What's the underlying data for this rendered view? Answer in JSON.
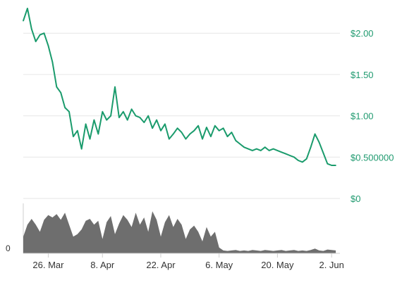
{
  "chart_data": {
    "type": "line",
    "title": "",
    "xlabel": "",
    "ylabel": "",
    "price_axis": {
      "ylim": [
        0,
        2.3
      ],
      "ticks": [
        {
          "value": 2.0,
          "label": "$2.00"
        },
        {
          "value": 1.5,
          "label": "$1.50"
        },
        {
          "value": 1.0,
          "label": "$1.00"
        },
        {
          "value": 0.5,
          "label": "$0.500000"
        },
        {
          "value": 0.0,
          "label": "$0"
        }
      ],
      "grid": true
    },
    "date_axis": {
      "xlim": [
        "2018-03-20",
        "2018-06-04"
      ],
      "ticks": [
        {
          "date": "2018-03-26",
          "label": "26. Mar"
        },
        {
          "date": "2018-04-08",
          "label": "8. Apr"
        },
        {
          "date": "2018-04-22",
          "label": "22. Apr"
        },
        {
          "date": "2018-05-06",
          "label": "6. May"
        },
        {
          "date": "2018-05-20",
          "label": "20. May"
        },
        {
          "date": "2018-06-02",
          "label": "2. Jun"
        }
      ]
    },
    "volume_axis": {
      "ticks": [
        {
          "value": 0,
          "label": "0"
        }
      ]
    },
    "series": [
      {
        "type": "line",
        "color": "#1a9b6c",
        "x": [
          "2018-03-20",
          "2018-03-21",
          "2018-03-22",
          "2018-03-23",
          "2018-03-24",
          "2018-03-25",
          "2018-03-26",
          "2018-03-27",
          "2018-03-28",
          "2018-03-29",
          "2018-03-30",
          "2018-03-31",
          "2018-04-01",
          "2018-04-02",
          "2018-04-03",
          "2018-04-04",
          "2018-04-05",
          "2018-04-06",
          "2018-04-07",
          "2018-04-08",
          "2018-04-09",
          "2018-04-10",
          "2018-04-11",
          "2018-04-12",
          "2018-04-13",
          "2018-04-14",
          "2018-04-15",
          "2018-04-16",
          "2018-04-17",
          "2018-04-18",
          "2018-04-19",
          "2018-04-20",
          "2018-04-21",
          "2018-04-22",
          "2018-04-23",
          "2018-04-24",
          "2018-04-25",
          "2018-04-26",
          "2018-04-27",
          "2018-04-28",
          "2018-04-29",
          "2018-04-30",
          "2018-05-01",
          "2018-05-02",
          "2018-05-03",
          "2018-05-04",
          "2018-05-05",
          "2018-05-06",
          "2018-05-07",
          "2018-05-08",
          "2018-05-09",
          "2018-05-10",
          "2018-05-11",
          "2018-05-12",
          "2018-05-13",
          "2018-05-14",
          "2018-05-15",
          "2018-05-16",
          "2018-05-17",
          "2018-05-18",
          "2018-05-19",
          "2018-05-20",
          "2018-05-21",
          "2018-05-22",
          "2018-05-23",
          "2018-05-24",
          "2018-05-25",
          "2018-05-26",
          "2018-05-27",
          "2018-05-28",
          "2018-05-29",
          "2018-05-30",
          "2018-05-31",
          "2018-06-01",
          "2018-06-02",
          "2018-06-03"
        ],
        "values": [
          2.15,
          2.3,
          2.05,
          1.9,
          1.98,
          2.0,
          1.85,
          1.65,
          1.35,
          1.28,
          1.1,
          1.05,
          0.75,
          0.82,
          0.6,
          0.9,
          0.72,
          0.95,
          0.78,
          1.05,
          0.95,
          1.0,
          1.35,
          0.98,
          1.05,
          0.95,
          1.08,
          1.0,
          0.98,
          0.92,
          1.0,
          0.85,
          0.95,
          0.82,
          0.9,
          0.72,
          0.78,
          0.85,
          0.8,
          0.72,
          0.78,
          0.82,
          0.88,
          0.72,
          0.86,
          0.75,
          0.88,
          0.82,
          0.85,
          0.75,
          0.8,
          0.7,
          0.66,
          0.62,
          0.6,
          0.58,
          0.6,
          0.58,
          0.62,
          0.58,
          0.6,
          0.58,
          0.56,
          0.54,
          0.52,
          0.5,
          0.46,
          0.44,
          0.48,
          0.62,
          0.78,
          0.68,
          0.55,
          0.42,
          0.4,
          0.4
        ]
      },
      {
        "type": "area",
        "color": "#6e6e6e",
        "x": [
          "2018-03-20",
          "2018-03-21",
          "2018-03-22",
          "2018-03-23",
          "2018-03-24",
          "2018-03-25",
          "2018-03-26",
          "2018-03-27",
          "2018-03-28",
          "2018-03-29",
          "2018-03-30",
          "2018-03-31",
          "2018-04-01",
          "2018-04-02",
          "2018-04-03",
          "2018-04-04",
          "2018-04-05",
          "2018-04-06",
          "2018-04-07",
          "2018-04-08",
          "2018-04-09",
          "2018-04-10",
          "2018-04-11",
          "2018-04-12",
          "2018-04-13",
          "2018-04-14",
          "2018-04-15",
          "2018-04-16",
          "2018-04-17",
          "2018-04-18",
          "2018-04-19",
          "2018-04-20",
          "2018-04-21",
          "2018-04-22",
          "2018-04-23",
          "2018-04-24",
          "2018-04-25",
          "2018-04-26",
          "2018-04-27",
          "2018-04-28",
          "2018-04-29",
          "2018-04-30",
          "2018-05-01",
          "2018-05-02",
          "2018-05-03",
          "2018-05-04",
          "2018-05-05",
          "2018-05-06",
          "2018-05-07",
          "2018-05-08",
          "2018-05-09",
          "2018-05-10",
          "2018-05-11",
          "2018-05-12",
          "2018-05-13",
          "2018-05-14",
          "2018-05-15",
          "2018-05-16",
          "2018-05-17",
          "2018-05-18",
          "2018-05-19",
          "2018-05-20",
          "2018-05-21",
          "2018-05-22",
          "2018-05-23",
          "2018-05-24",
          "2018-05-25",
          "2018-05-26",
          "2018-05-27",
          "2018-05-28",
          "2018-05-29",
          "2018-05-30",
          "2018-05-31",
          "2018-06-01",
          "2018-06-02",
          "2018-06-03"
        ],
        "values": [
          0.35,
          0.6,
          0.72,
          0.6,
          0.45,
          0.7,
          0.8,
          0.75,
          0.82,
          0.7,
          0.85,
          0.6,
          0.35,
          0.4,
          0.5,
          0.68,
          0.72,
          0.6,
          0.68,
          0.3,
          0.65,
          0.78,
          0.4,
          0.62,
          0.8,
          0.7,
          0.55,
          0.85,
          0.6,
          0.75,
          0.45,
          0.88,
          0.7,
          0.35,
          0.65,
          0.8,
          0.55,
          0.72,
          0.6,
          0.3,
          0.5,
          0.58,
          0.45,
          0.25,
          0.55,
          0.35,
          0.45,
          0.12,
          0.06,
          0.05,
          0.06,
          0.07,
          0.05,
          0.06,
          0.05,
          0.07,
          0.06,
          0.05,
          0.07,
          0.06,
          0.05,
          0.06,
          0.07,
          0.05,
          0.06,
          0.07,
          0.05,
          0.06,
          0.05,
          0.07,
          0.1,
          0.06,
          0.05,
          0.08,
          0.07,
          0.06
        ]
      }
    ]
  }
}
